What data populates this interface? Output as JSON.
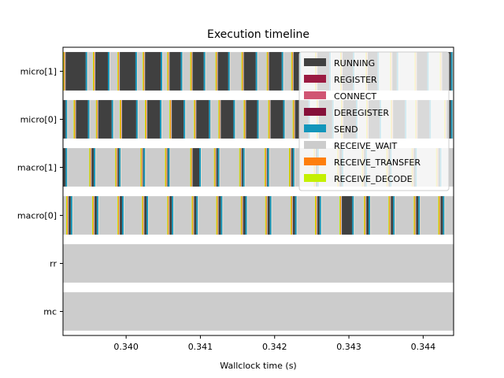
{
  "chart_data": {
    "type": "timeline",
    "title": "Execution timeline",
    "xlabel": "Wallclock time (s)",
    "ylabel": "",
    "xlim": [
      0.33915,
      0.34441
    ],
    "x_ticks": [
      0.34,
      0.341,
      0.342,
      0.343,
      0.344
    ],
    "x_tick_labels": [
      "0.340",
      "0.341",
      "0.342",
      "0.343",
      "0.344"
    ],
    "rows": [
      "micro[1]",
      "micro[0]",
      "macro[1]",
      "macro[0]",
      "rr",
      "mc"
    ],
    "grid": false,
    "legend_position": "top-right",
    "states": [
      {
        "name": "RUNNING",
        "color": "#404040"
      },
      {
        "name": "REGISTER",
        "color": "#9b1b41"
      },
      {
        "name": "CONNECT",
        "color": "#d05573"
      },
      {
        "name": "DEREGISTER",
        "color": "#861039"
      },
      {
        "name": "SEND",
        "color": "#1496bb"
      },
      {
        "name": "RECEIVE_WAIT",
        "color": "#cccccc"
      },
      {
        "name": "RECEIVE_TRANSFER",
        "color": "#fe7f0e"
      },
      {
        "name": "RECEIVE_DECODE",
        "color": "#c4f004"
      }
    ],
    "series": [
      {
        "row": "micro[1]",
        "base_state": "RECEIVE_WAIT",
        "period": 0.000325,
        "offset": 3e-05,
        "running_start": [
          0.339185,
          0.339585,
          0.339915,
          0.340255,
          0.340585,
          0.340895,
          0.341235,
          0.341585,
          0.341925,
          0.342255,
          0.342575,
          0.342915,
          0.343255,
          0.343585,
          0.343915,
          0.344255
        ],
        "running_end": [
          0.339455,
          0.339755,
          0.340125,
          0.340465,
          0.340735,
          0.341045,
          0.341375,
          0.341745,
          0.342095,
          0.342335,
          0.342735,
          0.343055,
          0.343385,
          0.343645,
          0.344055,
          0.344375
        ]
      },
      {
        "row": "micro[0]",
        "base_state": "RECEIVE_WAIT",
        "running_start": [
          0.339155,
          0.339325,
          0.339625,
          0.339945,
          0.340285,
          0.340615,
          0.340945,
          0.341275,
          0.341615,
          0.341945,
          0.342275,
          0.342595,
          0.342925,
          0.343265,
          0.343595,
          0.343925,
          0.344315
        ],
        "running_end": [
          0.339185,
          0.339485,
          0.339805,
          0.340135,
          0.340455,
          0.340775,
          0.341115,
          0.341445,
          0.341765,
          0.342115,
          0.342455,
          0.342775,
          0.343095,
          0.343415,
          0.343755,
          0.344085,
          0.344375
        ]
      },
      {
        "row": "macro[1]",
        "base_state": "RECEIVE_WAIT",
        "running_start": [
          0.339155,
          0.339535,
          0.339885,
          0.340225,
          0.340555,
          0.340895,
          0.341215,
          0.341555,
          0.341895,
          0.342225,
          0.342555,
          0.342875,
          0.343205,
          0.343535,
          0.343875,
          0.344205
        ],
        "running_end": [
          0.339185,
          0.339565,
          0.339905,
          0.340235,
          0.340565,
          0.340985,
          0.341235,
          0.341575,
          0.341905,
          0.342245,
          0.342575,
          0.342905,
          0.343225,
          0.343555,
          0.343895,
          0.344225
        ]
      },
      {
        "row": "macro[0]",
        "base_state": "RECEIVE_WAIT",
        "running_start": [
          0.339225,
          0.339575,
          0.339915,
          0.340245,
          0.340585,
          0.340915,
          0.341245,
          0.341575,
          0.341905,
          0.342245,
          0.342575,
          0.342905,
          0.343235,
          0.343565,
          0.343905,
          0.344235
        ],
        "running_end": [
          0.339255,
          0.339605,
          0.339945,
          0.340275,
          0.340615,
          0.340945,
          0.341275,
          0.341605,
          0.341935,
          0.342275,
          0.342605,
          0.343045,
          0.343265,
          0.343595,
          0.343935,
          0.344265
        ]
      },
      {
        "row": "rr",
        "base_state": "RECEIVE_WAIT",
        "running_start": [],
        "running_end": []
      },
      {
        "row": "mc",
        "base_state": "RECEIVE_WAIT",
        "running_start": [],
        "running_end": []
      }
    ]
  }
}
